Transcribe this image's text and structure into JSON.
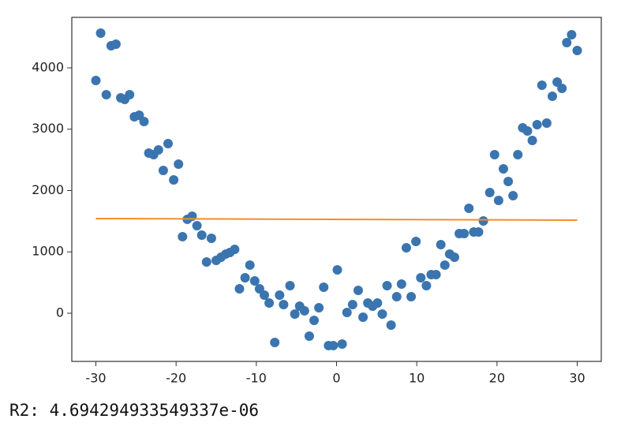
{
  "chart_data": {
    "type": "scatter",
    "xlim": [
      -33,
      33
    ],
    "ylim": [
      -785,
      4823
    ],
    "xticks": [
      -30,
      -20,
      -10,
      0,
      10,
      20,
      30
    ],
    "yticks": [
      0,
      1000,
      2000,
      3000,
      4000
    ],
    "series": [
      {
        "type": "scatter",
        "color": "#3a75b0",
        "x": [
          -30.0,
          -29.4,
          -28.7,
          -28.1,
          -27.5,
          -26.9,
          -26.4,
          -25.8,
          -25.2,
          -24.6,
          -24.0,
          -23.4,
          -22.8,
          -22.2,
          -21.6,
          -21.0,
          -20.3,
          -19.7,
          -19.2,
          -18.6,
          -18.0,
          -17.4,
          -16.8,
          -16.2,
          -15.6,
          -15.0,
          -14.4,
          -13.8,
          -13.3,
          -12.7,
          -12.1,
          -11.4,
          -10.8,
          -10.2,
          -9.6,
          -9.0,
          -8.4,
          -7.7,
          -7.1,
          -6.6,
          -5.8,
          -5.2,
          -4.6,
          -4.0,
          -3.4,
          -2.8,
          -2.2,
          -1.6,
          -1.0,
          -0.4,
          0.1,
          0.7,
          1.3,
          2.0,
          2.7,
          3.3,
          3.9,
          4.5,
          5.1,
          5.7,
          6.3,
          6.8,
          7.5,
          8.1,
          8.7,
          9.3,
          9.9,
          10.5,
          11.2,
          11.8,
          12.4,
          13.0,
          13.5,
          14.1,
          14.7,
          15.3,
          15.9,
          16.5,
          17.1,
          17.7,
          18.3,
          19.1,
          19.7,
          20.2,
          20.8,
          21.4,
          22.0,
          22.6,
          23.2,
          23.8,
          24.4,
          25.0,
          25.6,
          26.2,
          26.9,
          27.5,
          28.1,
          28.7,
          29.3,
          30.0
        ],
        "values": [
          3794,
          4566,
          3563,
          4360,
          4386,
          3511,
          3486,
          3563,
          3203,
          3228,
          3125,
          2611,
          2585,
          2662,
          2328,
          2765,
          2174,
          2431,
          1248,
          1531,
          1582,
          1428,
          1273,
          836,
          1222,
          862,
          913,
          965,
          990,
          1042,
          399,
          579,
          785,
          527,
          399,
          296,
          167,
          -476,
          296,
          141,
          450,
          -13,
          116,
          39,
          -373,
          -116,
          90,
          424,
          -527,
          -527,
          707,
          -502,
          13,
          141,
          373,
          -64,
          167,
          116,
          167,
          -13,
          450,
          -193,
          270,
          476,
          1067,
          270,
          1170,
          579,
          450,
          630,
          630,
          1119,
          785,
          965,
          913,
          1299,
          1299,
          1711,
          1325,
          1325,
          1505,
          1968,
          2585,
          1839,
          2354,
          2148,
          1916,
          2585,
          3023,
          2971,
          2817,
          3074,
          3717,
          3100,
          3537,
          3768,
          3666,
          4412,
          4540,
          4283
        ]
      },
      {
        "type": "line",
        "color": "#f28e2b",
        "x": [
          -30,
          30
        ],
        "values": [
          1543,
          1518
        ]
      }
    ]
  },
  "output_text": "R2: 4.694294933549337e-06"
}
